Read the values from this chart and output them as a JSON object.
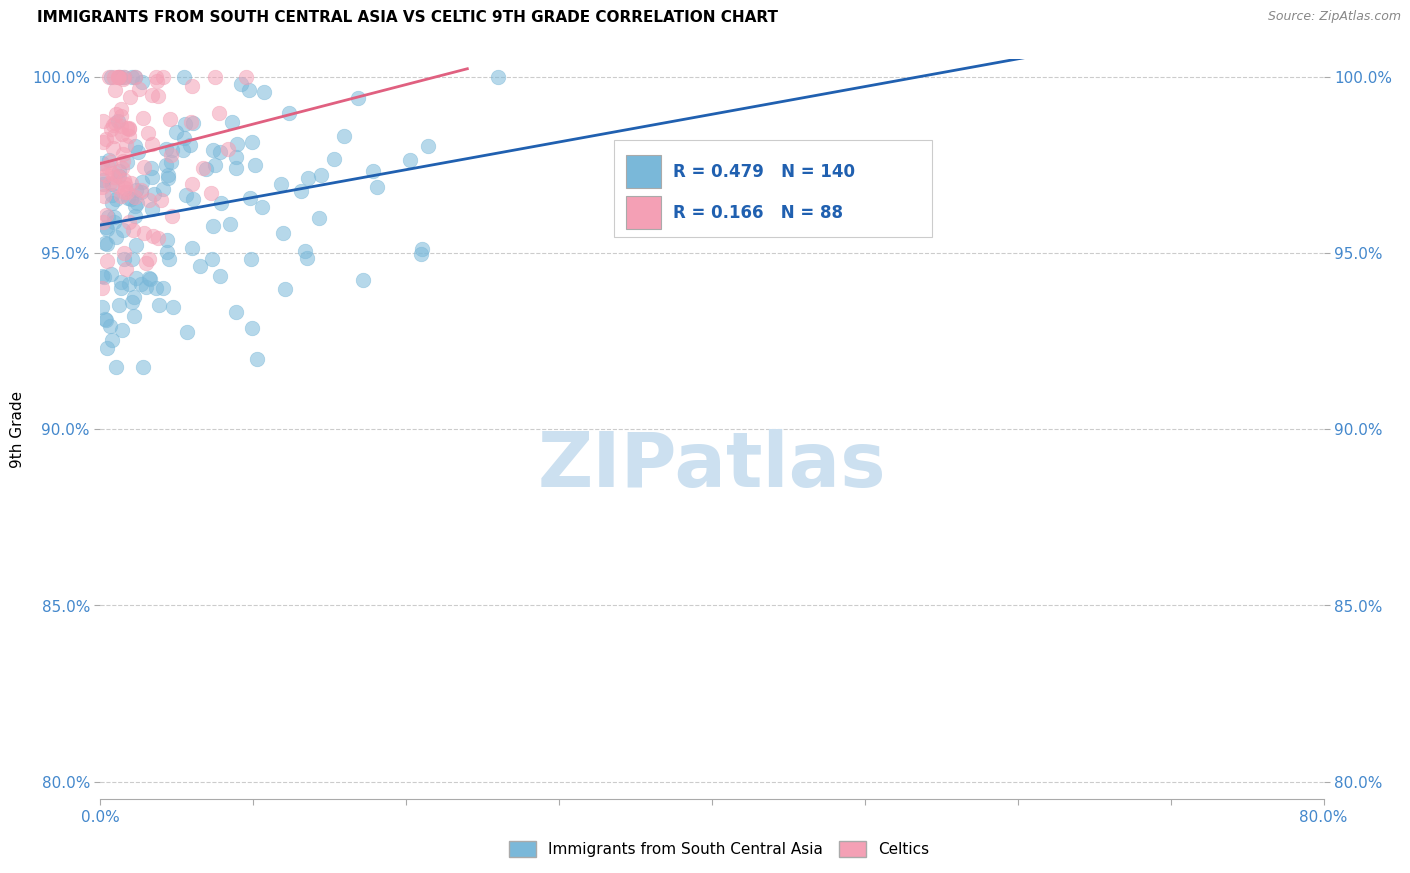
{
  "title": "IMMIGRANTS FROM SOUTH CENTRAL ASIA VS CELTIC 9TH GRADE CORRELATION CHART",
  "source": "Source: ZipAtlas.com",
  "ylabel": "9th Grade",
  "xlim": [
    0.0,
    0.8
  ],
  "ylim": [
    0.795,
    1.005
  ],
  "xticks": [
    0.0,
    0.1,
    0.2,
    0.3,
    0.4,
    0.5,
    0.6,
    0.7,
    0.8
  ],
  "xticklabels": [
    "0.0%",
    "",
    "",
    "",
    "",
    "",
    "",
    "",
    "80.0%"
  ],
  "yticks": [
    0.8,
    0.85,
    0.9,
    0.95,
    1.0
  ],
  "yticklabels": [
    "80.0%",
    "85.0%",
    "90.0%",
    "95.0%",
    "100.0%"
  ],
  "blue_color": "#7ab8d9",
  "pink_color": "#f4a0b5",
  "blue_line_color": "#2060b0",
  "pink_line_color": "#e06080",
  "legend_blue_R": 0.479,
  "legend_blue_N": 140,
  "legend_pink_R": 0.166,
  "legend_pink_N": 88,
  "watermark": "ZIPatlas",
  "watermark_color": "#cce0f0",
  "seed_blue": 42,
  "seed_pink": 7,
  "blue_n": 140,
  "pink_n": 88
}
